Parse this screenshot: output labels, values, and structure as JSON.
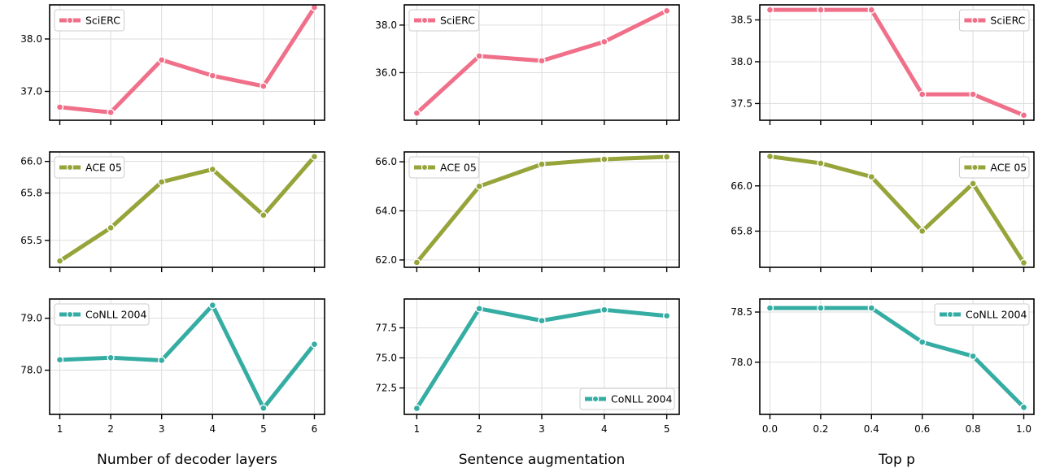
{
  "colors": {
    "SciERC": "#f0708a",
    "ACE 05": "#96a43a",
    "CoNLL 2004": "#35ada3"
  },
  "columns": [
    {
      "xlabel": "Number of decoder layers",
      "xticks": [
        "1",
        "2",
        "3",
        "4",
        "5",
        "6"
      ]
    },
    {
      "xlabel": "Sentence augmentation",
      "xticks": [
        "1",
        "2",
        "3",
        "4",
        "5"
      ]
    },
    {
      "xlabel": "Top p",
      "xticks": [
        "0.0",
        "0.2",
        "0.4",
        "0.6",
        "0.8",
        "1.0"
      ]
    }
  ],
  "chart_data": [
    {
      "type": "line",
      "row": 0,
      "col": 0,
      "series": [
        {
          "name": "SciERC",
          "x": [
            1,
            2,
            3,
            4,
            5,
            6
          ],
          "values": [
            36.7,
            36.6,
            37.6,
            37.3,
            37.1,
            38.6
          ]
        }
      ],
      "xlim": [
        0.8,
        6.2
      ],
      "ylim": [
        36.45,
        38.65
      ],
      "yticks": [
        "37.0",
        "38.0"
      ],
      "grid": true,
      "legend": "top-left"
    },
    {
      "type": "line",
      "row": 0,
      "col": 1,
      "series": [
        {
          "name": "SciERC",
          "x": [
            1,
            2,
            3,
            4,
            5
          ],
          "values": [
            34.3,
            36.7,
            36.5,
            37.3,
            38.6
          ]
        }
      ],
      "xlim": [
        0.8,
        5.2
      ],
      "ylim": [
        34.0,
        38.85
      ],
      "yticks": [
        "36.0",
        "38.0"
      ],
      "grid": true,
      "legend": "top-left"
    },
    {
      "type": "line",
      "row": 0,
      "col": 2,
      "series": [
        {
          "name": "SciERC",
          "x": [
            0.0,
            0.2,
            0.4,
            0.6,
            0.8,
            1.0
          ],
          "values": [
            38.62,
            38.62,
            38.62,
            37.61,
            37.61,
            37.36
          ]
        }
      ],
      "xlim": [
        -0.04,
        1.04
      ],
      "ylim": [
        37.3,
        38.68
      ],
      "yticks": [
        "37.5",
        "38.0",
        "38.5"
      ],
      "grid": true,
      "legend": "top-right"
    },
    {
      "type": "line",
      "row": 1,
      "col": 0,
      "series": [
        {
          "name": "ACE 05",
          "x": [
            1,
            2,
            3,
            4,
            5,
            6
          ],
          "values": [
            65.37,
            65.58,
            65.87,
            65.95,
            65.66,
            66.03
          ]
        }
      ],
      "xlim": [
        0.8,
        6.2
      ],
      "ylim": [
        65.33,
        66.06
      ],
      "yticks": [
        "65.5",
        "65.8",
        "66.0"
      ],
      "grid": true,
      "legend": "top-left"
    },
    {
      "type": "line",
      "row": 1,
      "col": 1,
      "series": [
        {
          "name": "ACE 05",
          "x": [
            1,
            2,
            3,
            4,
            5
          ],
          "values": [
            61.9,
            65.0,
            65.9,
            66.1,
            66.2
          ]
        }
      ],
      "xlim": [
        0.8,
        5.2
      ],
      "ylim": [
        61.7,
        66.4
      ],
      "yticks": [
        "62.0",
        "64.0",
        "66.0"
      ],
      "grid": true,
      "legend": "top-left"
    },
    {
      "type": "line",
      "row": 1,
      "col": 2,
      "series": [
        {
          "name": "ACE 05",
          "x": [
            0.0,
            0.2,
            0.4,
            0.6,
            0.8,
            1.0
          ],
          "values": [
            66.13,
            66.1,
            66.04,
            65.8,
            66.01,
            65.66
          ]
        }
      ],
      "xlim": [
        -0.04,
        1.04
      ],
      "ylim": [
        65.64,
        66.15
      ],
      "yticks": [
        "65.8",
        "66.0"
      ],
      "grid": true,
      "legend": "top-right"
    },
    {
      "type": "line",
      "row": 2,
      "col": 0,
      "series": [
        {
          "name": "CoNLL 2004",
          "x": [
            1,
            2,
            3,
            4,
            5,
            6
          ],
          "values": [
            78.2,
            78.24,
            78.19,
            79.25,
            77.27,
            78.5
          ]
        }
      ],
      "xlim": [
        0.8,
        6.2
      ],
      "ylim": [
        77.15,
        79.37
      ],
      "yticks": [
        "78.0",
        "79.0"
      ],
      "grid": true,
      "legend": "top-left"
    },
    {
      "type": "line",
      "row": 2,
      "col": 1,
      "series": [
        {
          "name": "CoNLL 2004",
          "x": [
            1,
            2,
            3,
            4,
            5
          ],
          "values": [
            70.8,
            79.1,
            78.1,
            79.0,
            78.5
          ]
        }
      ],
      "xlim": [
        0.8,
        5.2
      ],
      "ylim": [
        70.3,
        79.9
      ],
      "yticks": [
        "72.5",
        "75.0",
        "77.5"
      ],
      "grid": true,
      "legend": "bottom-right"
    },
    {
      "type": "line",
      "row": 2,
      "col": 2,
      "series": [
        {
          "name": "CoNLL 2004",
          "x": [
            0.0,
            0.2,
            0.4,
            0.6,
            0.8,
            1.0
          ],
          "values": [
            78.54,
            78.54,
            78.54,
            78.2,
            78.06,
            77.55
          ]
        }
      ],
      "xlim": [
        -0.04,
        1.04
      ],
      "ylim": [
        77.48,
        78.63
      ],
      "yticks": [
        "78.0",
        "78.5"
      ],
      "grid": true,
      "legend": "top-right"
    }
  ]
}
